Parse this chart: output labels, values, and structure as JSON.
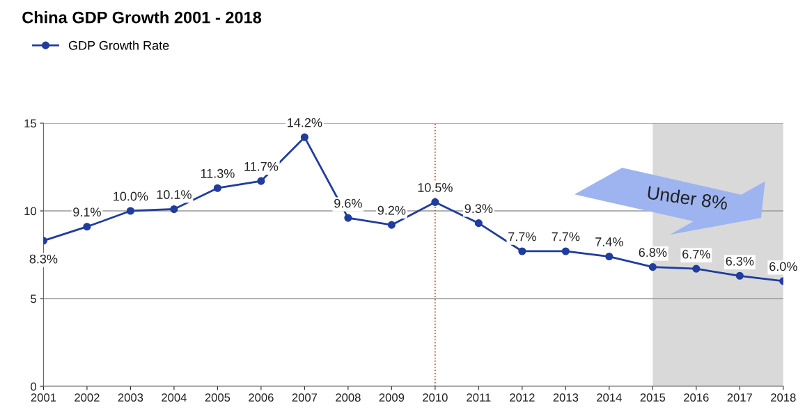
{
  "chart_data": {
    "type": "line",
    "title": "China GDP Growth 2001 - 2018",
    "x": [
      2001,
      2002,
      2003,
      2004,
      2005,
      2006,
      2007,
      2008,
      2009,
      2010,
      2011,
      2012,
      2013,
      2014,
      2015,
      2016,
      2017,
      2018
    ],
    "series": [
      {
        "name": "GDP Growth Rate",
        "color": "#1f3c9e",
        "values": [
          8.3,
          9.1,
          10.0,
          10.1,
          11.3,
          11.7,
          14.2,
          9.6,
          9.2,
          10.5,
          9.3,
          7.7,
          7.7,
          7.4,
          6.8,
          6.7,
          6.3,
          6.0
        ],
        "value_labels": [
          "8.3%",
          "9.1%",
          "10.0%",
          "10.1%",
          "11.3%",
          "11.7%",
          "14.2%",
          "9.6%",
          "9.2%",
          "10.5%",
          "9.3%",
          "7.7%",
          "7.7%",
          "7.4%",
          "6.8%",
          "6.7%",
          "6.3%",
          "6.0%"
        ]
      }
    ],
    "xlim": [
      2001,
      2018
    ],
    "xticks": [
      2001,
      2002,
      2003,
      2004,
      2005,
      2006,
      2007,
      2008,
      2009,
      2010,
      2011,
      2012,
      2013,
      2014,
      2015,
      2016,
      2017,
      2018
    ],
    "ylim": [
      0,
      15
    ],
    "yticks": [
      0,
      5,
      10,
      15
    ],
    "grid": "y",
    "legend": "top left",
    "marker": "circle",
    "line_style": "solid",
    "ref_lines": [
      {
        "axis": "x",
        "value": 2010,
        "color": "#c0392b",
        "line_style": "dotted"
      }
    ],
    "bands": [
      {
        "axis": "x",
        "from": 2015,
        "to": 2018,
        "color": "#d9d9d9"
      }
    ],
    "annotations": [
      "Under 8%"
    ]
  }
}
